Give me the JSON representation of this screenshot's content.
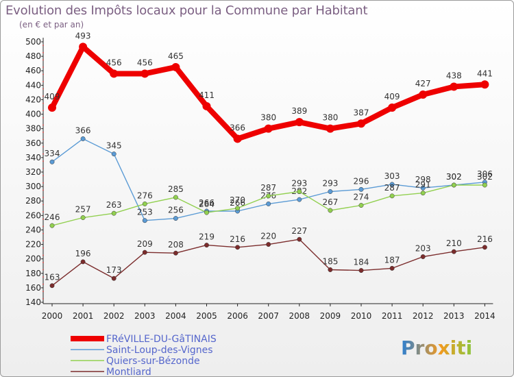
{
  "header": {
    "title": "Evolution des Impôts locaux pour la Commune par Habitant",
    "subtitle": "(en € et par an)"
  },
  "logo": {
    "text": "Proxiti"
  },
  "chart_data": {
    "type": "line",
    "title": "Evolution des Impôts locaux pour la Commune par Habitant",
    "subtitle": "(en € et par an)",
    "xlabel": "",
    "ylabel": "",
    "ylim": [
      140,
      500
    ],
    "yticks": [
      140,
      160,
      180,
      200,
      220,
      240,
      260,
      280,
      300,
      320,
      340,
      360,
      380,
      400,
      420,
      440,
      460,
      480,
      500
    ],
    "grid": false,
    "legend_position": "bottom-left",
    "x": [
      "2000",
      "2001",
      "2002",
      "2003",
      "2004",
      "2005",
      "2006",
      "2007",
      "2008",
      "2009",
      "2010",
      "2011",
      "2012",
      "2013",
      "2014"
    ],
    "series": [
      {
        "name": "FRéVILLE-DU-GâTINAIS",
        "color": "#ee0000",
        "style": "thick",
        "values": [
          409,
          493,
          456,
          456,
          465,
          411,
          366,
          380,
          389,
          380,
          387,
          409,
          427,
          438,
          441
        ]
      },
      {
        "name": "Saint-Loup-des-Vignes",
        "color": "#5b9bd5",
        "style": "thin",
        "values": [
          334,
          366,
          345,
          253,
          256,
          266,
          266,
          276,
          282,
          293,
          296,
          303,
          298,
          302,
          306
        ]
      },
      {
        "name": "Quiers-sur-Bézonde",
        "color": "#92d050",
        "style": "thin",
        "values": [
          246,
          257,
          263,
          276,
          285,
          264,
          270,
          287,
          293,
          267,
          274,
          287,
          291,
          302,
          302
        ]
      },
      {
        "name": "Montliard",
        "color": "#7b2c2c",
        "style": "thin",
        "values": [
          163,
          196,
          173,
          209,
          208,
          219,
          216,
          220,
          227,
          185,
          184,
          187,
          203,
          210,
          216
        ]
      }
    ]
  }
}
